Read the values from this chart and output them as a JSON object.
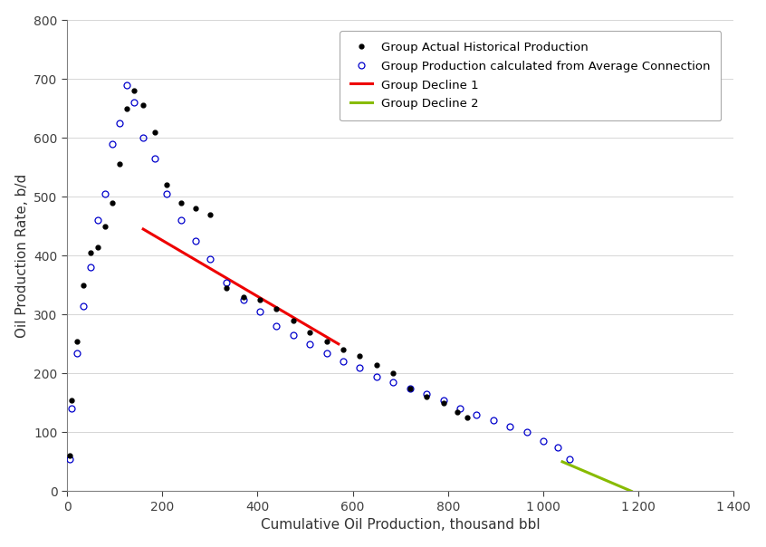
{
  "title": "",
  "xlabel": "Cumulative Oil Production, thousand bbl",
  "ylabel": "Oil Production Rate, b/d",
  "xlim": [
    0,
    1400
  ],
  "ylim": [
    0,
    800
  ],
  "xticks": [
    0,
    200,
    400,
    600,
    800,
    1000,
    1200,
    1400
  ],
  "yticks": [
    0,
    100,
    200,
    300,
    400,
    500,
    600,
    700,
    800
  ],
  "actual_x": [
    5,
    10,
    20,
    35,
    50,
    65,
    80,
    95,
    110,
    125,
    140,
    160,
    185,
    210,
    240,
    270,
    300,
    335,
    370,
    405,
    440,
    475,
    510,
    545,
    580,
    615,
    650,
    685,
    720,
    755,
    790,
    820,
    840
  ],
  "actual_y": [
    60,
    155,
    255,
    350,
    405,
    415,
    450,
    490,
    555,
    650,
    680,
    655,
    610,
    520,
    490,
    480,
    470,
    345,
    330,
    325,
    310,
    290,
    270,
    255,
    240,
    230,
    215,
    200,
    175,
    160,
    150,
    135,
    125
  ],
  "calc_x": [
    5,
    10,
    20,
    35,
    50,
    65,
    80,
    95,
    110,
    125,
    140,
    160,
    185,
    210,
    240,
    270,
    300,
    335,
    370,
    405,
    440,
    475,
    510,
    545,
    580,
    615,
    650,
    685,
    720,
    755,
    790,
    825,
    860,
    895,
    930,
    965,
    1000,
    1030,
    1055
  ],
  "calc_y": [
    55,
    140,
    235,
    315,
    380,
    460,
    505,
    590,
    625,
    690,
    660,
    600,
    565,
    505,
    460,
    425,
    395,
    355,
    325,
    305,
    280,
    265,
    250,
    235,
    220,
    210,
    195,
    185,
    175,
    165,
    155,
    140,
    130,
    120,
    110,
    100,
    85,
    75,
    55
  ],
  "decline1_x": [
    160,
    570
  ],
  "decline1_y": [
    445,
    250
  ],
  "decline2_x": [
    1040,
    1185
  ],
  "decline2_y": [
    50,
    0
  ],
  "actual_color": "#000000",
  "calc_color": "#0000cc",
  "decline1_color": "#ee0000",
  "decline2_color": "#88bb00",
  "legend_labels": [
    "Group Actual Historical Production",
    "Group Production calculated from Average Connection",
    "Group Decline 1",
    "Group Decline 2"
  ],
  "background_color": "#ffffff",
  "grid_color": "#d0d0d0",
  "tick_label_color": "#404040",
  "spine_color": "#808080"
}
